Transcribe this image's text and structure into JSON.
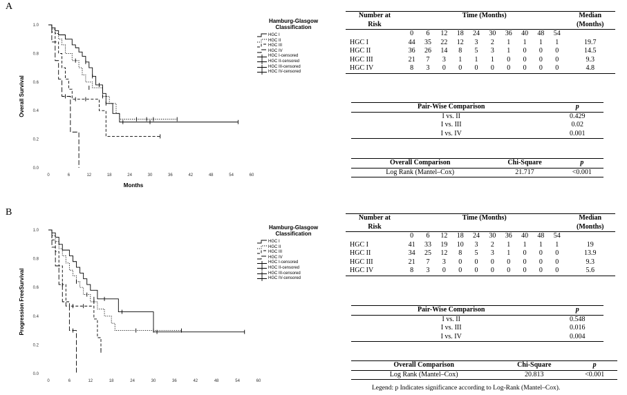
{
  "panels": [
    {
      "letter": "A",
      "chart_data": {
        "type": "line",
        "ylabel": "Overall Survival",
        "xlabel": "Months",
        "xlim": [
          0,
          60
        ],
        "ylim": [
          0,
          1
        ],
        "xticks": [
          0,
          6,
          12,
          18,
          24,
          30,
          36,
          42,
          48,
          54,
          60
        ],
        "yticks": [
          0.0,
          0.2,
          0.4,
          0.6,
          0.8,
          1.0
        ],
        "series": [
          {
            "name": "HGC I",
            "style": "solid",
            "steps": [
              [
                0,
                1.0
              ],
              [
                1,
                0.98
              ],
              [
                2,
                0.96
              ],
              [
                3,
                0.93
              ],
              [
                5,
                0.9
              ],
              [
                7,
                0.86
              ],
              [
                8,
                0.84
              ],
              [
                9,
                0.81
              ],
              [
                10,
                0.78
              ],
              [
                11,
                0.74
              ],
              [
                12,
                0.7
              ],
              [
                13,
                0.64
              ],
              [
                14,
                0.58
              ],
              [
                16,
                0.52
              ],
              [
                17,
                0.45
              ],
              [
                19,
                0.38
              ],
              [
                21,
                0.32
              ],
              [
                56,
                0.32
              ]
            ],
            "censor": [
              [
                11,
                0.74
              ],
              [
                13,
                0.64
              ],
              [
                15,
                0.58
              ],
              [
                17,
                0.45
              ],
              [
                22,
                0.32
              ],
              [
                30,
                0.32
              ],
              [
                56,
                0.32
              ]
            ]
          },
          {
            "name": "HGC II",
            "style": "dotted",
            "steps": [
              [
                0,
                1.0
              ],
              [
                1,
                0.97
              ],
              [
                2,
                0.94
              ],
              [
                3,
                0.9
              ],
              [
                4,
                0.86
              ],
              [
                5,
                0.8
              ],
              [
                7,
                0.75
              ],
              [
                9,
                0.7
              ],
              [
                10,
                0.65
              ],
              [
                11,
                0.6
              ],
              [
                13,
                0.56
              ],
              [
                16,
                0.5
              ],
              [
                18,
                0.45
              ],
              [
                20,
                0.38
              ],
              [
                21,
                0.34
              ],
              [
                38,
                0.34
              ]
            ],
            "censor": [
              [
                8,
                0.75
              ],
              [
                12,
                0.56
              ],
              [
                16,
                0.5
              ],
              [
                26,
                0.34
              ],
              [
                29,
                0.34
              ],
              [
                31,
                0.34
              ],
              [
                38,
                0.34
              ]
            ]
          },
          {
            "name": "HGC III",
            "style": "dashed",
            "steps": [
              [
                0,
                1.0
              ],
              [
                1,
                0.95
              ],
              [
                2,
                0.88
              ],
              [
                3,
                0.8
              ],
              [
                4,
                0.7
              ],
              [
                5,
                0.62
              ],
              [
                6,
                0.55
              ],
              [
                7,
                0.48
              ],
              [
                14,
                0.48
              ],
              [
                15,
                0.4
              ],
              [
                17,
                0.22
              ],
              [
                33,
                0.22
              ]
            ],
            "censor": [
              [
                8,
                0.48
              ],
              [
                11,
                0.48
              ],
              [
                33,
                0.22
              ]
            ]
          },
          {
            "name": "HGC IV",
            "style": "longdash",
            "steps": [
              [
                0,
                1.0
              ],
              [
                1,
                0.88
              ],
              [
                2,
                0.75
              ],
              [
                3,
                0.62
              ],
              [
                4,
                0.5
              ],
              [
                6,
                0.5
              ],
              [
                6.5,
                0.25
              ],
              [
                8.5,
                0.25
              ],
              [
                9,
                0.0
              ]
            ],
            "censor": [
              [
                5,
                0.5
              ]
            ]
          }
        ]
      },
      "legend": {
        "title": "Hamburg-Glasgow Classification",
        "items": [
          "HGC I",
          "HGC II",
          "HGC III",
          "HGC IV",
          "HGC I-censored",
          "HGC II-censored",
          "HGC III-censored",
          "HGC IV-censored"
        ]
      },
      "risk_table": {
        "header1": {
          "left": "Number at",
          "time": "Time (Months)",
          "median": "Median"
        },
        "header2": {
          "left": "Risk",
          "median": "(Months)"
        },
        "times": [
          "0",
          "6",
          "12",
          "18",
          "24",
          "30",
          "36",
          "40",
          "48",
          "54"
        ],
        "rows": [
          {
            "group": "HGC I",
            "counts": [
              "44",
              "35",
              "22",
              "12",
              "3",
              "2",
              "1",
              "1",
              "1",
              "1"
            ],
            "median": "19.7"
          },
          {
            "group": "HGC II",
            "counts": [
              "36",
              "26",
              "14",
              "8",
              "5",
              "3",
              "1",
              "0",
              "0",
              "0"
            ],
            "median": "14.5"
          },
          {
            "group": "HGC III",
            "counts": [
              "21",
              "7",
              "3",
              "1",
              "1",
              "1",
              "0",
              "0",
              "0",
              "0"
            ],
            "median": "9.3"
          },
          {
            "group": "HGC IV",
            "counts": [
              "8",
              "3",
              "0",
              "0",
              "0",
              "0",
              "0",
              "0",
              "0",
              "0"
            ],
            "median": "4.8"
          }
        ]
      },
      "pair_table": {
        "header": [
          "Pair-Wise Comparison",
          "p"
        ],
        "rows": [
          [
            "I vs. II",
            "0.429"
          ],
          [
            "I vs. III",
            "0.02"
          ],
          [
            "I vs. IV",
            "0.001"
          ]
        ]
      },
      "overall_table": {
        "header": [
          "Overall Comparison",
          "Chi-Square",
          "p"
        ],
        "rows": [
          [
            "Log Rank (Mantel–Cox)",
            "21.717",
            "<0.001"
          ]
        ]
      }
    },
    {
      "letter": "B",
      "chart_data": {
        "type": "line",
        "ylabel": "Progression FreeSurvival",
        "xlabel": "",
        "xlim": [
          0,
          60
        ],
        "ylim": [
          0,
          1
        ],
        "xticks": [
          0,
          6,
          12,
          18,
          24,
          30,
          36,
          42,
          48,
          54,
          60
        ],
        "yticks": [
          0.0,
          0.2,
          0.4,
          0.6,
          0.8,
          1.0
        ],
        "series": [
          {
            "name": "HGC I",
            "style": "solid",
            "steps": [
              [
                0,
                1.0
              ],
              [
                1,
                0.98
              ],
              [
                2,
                0.95
              ],
              [
                3,
                0.9
              ],
              [
                4,
                0.86
              ],
              [
                6,
                0.82
              ],
              [
                7,
                0.78
              ],
              [
                8,
                0.74
              ],
              [
                9,
                0.7
              ],
              [
                10,
                0.66
              ],
              [
                11,
                0.62
              ],
              [
                12,
                0.58
              ],
              [
                14,
                0.52
              ],
              [
                20,
                0.43
              ],
              [
                30,
                0.29
              ],
              [
                56,
                0.29
              ]
            ],
            "censor": [
              [
                13,
                0.52
              ],
              [
                16,
                0.52
              ],
              [
                21,
                0.43
              ],
              [
                31,
                0.29
              ],
              [
                56,
                0.29
              ]
            ]
          },
          {
            "name": "HGC II",
            "style": "dotted",
            "steps": [
              [
                0,
                1.0
              ],
              [
                1,
                0.96
              ],
              [
                2,
                0.92
              ],
              [
                3,
                0.87
              ],
              [
                4,
                0.82
              ],
              [
                5,
                0.77
              ],
              [
                6,
                0.72
              ],
              [
                7,
                0.68
              ],
              [
                8,
                0.64
              ],
              [
                9,
                0.6
              ],
              [
                10,
                0.55
              ],
              [
                12,
                0.5
              ],
              [
                14,
                0.45
              ],
              [
                16,
                0.4
              ],
              [
                18,
                0.35
              ],
              [
                19,
                0.3
              ],
              [
                38,
                0.3
              ]
            ],
            "censor": [
              [
                8,
                0.64
              ],
              [
                11,
                0.55
              ],
              [
                13,
                0.5
              ],
              [
                25,
                0.3
              ],
              [
                30,
                0.3
              ],
              [
                38,
                0.3
              ]
            ]
          },
          {
            "name": "HGC III",
            "style": "dashed",
            "steps": [
              [
                0,
                1.0
              ],
              [
                1,
                0.93
              ],
              [
                2,
                0.85
              ],
              [
                3,
                0.75
              ],
              [
                4,
                0.62
              ],
              [
                5,
                0.5
              ],
              [
                6,
                0.47
              ],
              [
                12,
                0.47
              ],
              [
                13,
                0.38
              ],
              [
                14,
                0.25
              ],
              [
                15,
                0.16
              ]
            ],
            "censor": [
              [
                4,
                0.62
              ],
              [
                7,
                0.47
              ],
              [
                10,
                0.47
              ],
              [
                15,
                0.16
              ]
            ]
          },
          {
            "name": "HGC IV",
            "style": "longdash",
            "steps": [
              [
                0,
                1.0
              ],
              [
                1,
                0.88
              ],
              [
                2,
                0.75
              ],
              [
                3,
                0.62
              ],
              [
                4,
                0.5
              ],
              [
                5,
                0.47
              ],
              [
                6,
                0.3
              ],
              [
                7.5,
                0.3
              ],
              [
                8,
                0.0
              ]
            ],
            "censor": [
              [
                7,
                0.3
              ]
            ]
          }
        ]
      },
      "legend": {
        "title": "Hamburg-Glasgow Classification",
        "items": [
          "HGC I",
          "HGC II",
          "HGC III",
          "HGC IV",
          "HGC I-censored",
          "HGC II-censored",
          "HGC III-censored",
          "HGC IV-censored"
        ]
      },
      "risk_table": {
        "header1": {
          "left": "Number at",
          "time": "Time (Months)",
          "median": "Median"
        },
        "header2": {
          "left": "Risk",
          "median": "(Months)"
        },
        "times": [
          "0",
          "6",
          "12",
          "18",
          "24",
          "30",
          "36",
          "40",
          "48",
          "54"
        ],
        "rows": [
          {
            "group": "HGC I",
            "counts": [
              "41",
              "33",
              "19",
              "10",
              "3",
              "2",
              "1",
              "1",
              "1",
              "1"
            ],
            "median": "19"
          },
          {
            "group": "HGC II",
            "counts": [
              "34",
              "25",
              "12",
              "8",
              "5",
              "3",
              "1",
              "0",
              "0",
              "0"
            ],
            "median": "13.9"
          },
          {
            "group": "HGC III",
            "counts": [
              "21",
              "7",
              "3",
              "0",
              "0",
              "0",
              "0",
              "0",
              "0",
              "0"
            ],
            "median": "9.3"
          },
          {
            "group": "HGC IV",
            "counts": [
              "8",
              "3",
              "0",
              "0",
              "0",
              "0",
              "0",
              "0",
              "0",
              "0"
            ],
            "median": "5.6"
          }
        ]
      },
      "pair_table": {
        "header": [
          "Pair-Wise Comparison",
          "p"
        ],
        "rows": [
          [
            "I vs. II",
            "0.548"
          ],
          [
            "I vs. III",
            "0.016"
          ],
          [
            "I vs. IV",
            "0.004"
          ]
        ]
      },
      "overall_table": {
        "header": [
          "Overall Comparison",
          "Chi-Square",
          "p"
        ],
        "rows": [
          [
            "Log Rank (Mantel–Cox)",
            "20.813",
            "<0.001"
          ]
        ]
      }
    }
  ],
  "caption": "Legend: p Indicates significance according to Log-Rank (Mantel–Cox)."
}
